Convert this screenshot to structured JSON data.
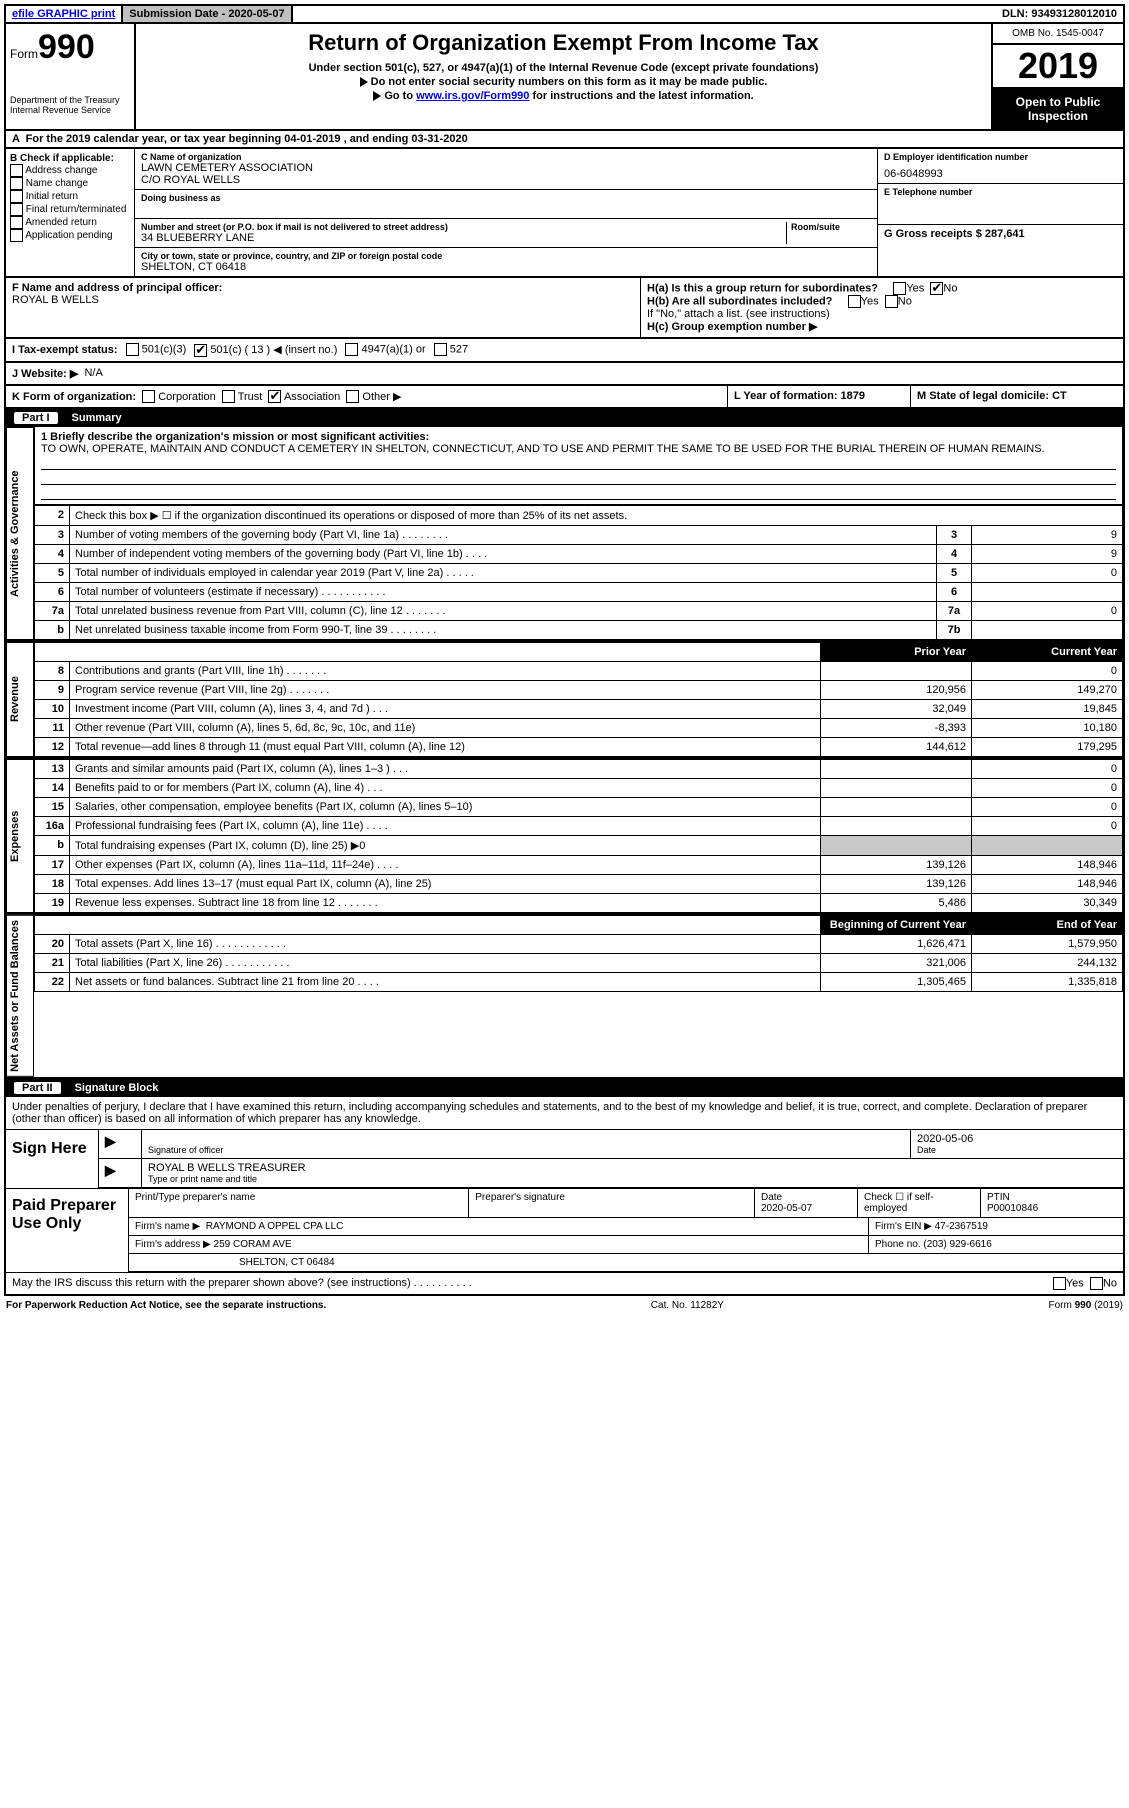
{
  "topbar": {
    "efile": "efile GRAPHIC print",
    "submission_label": "Submission Date - 2020-05-07",
    "dln": "DLN: 93493128012010"
  },
  "header": {
    "form_prefix": "Form",
    "form_number": "990",
    "dept": "Department of the Treasury",
    "irs": "Internal Revenue Service",
    "title": "Return of Organization Exempt From Income Tax",
    "subtitle": "Under section 501(c), 527, or 4947(a)(1) of the Internal Revenue Code (except private foundations)",
    "note1": "Do not enter social security numbers on this form as it may be made public.",
    "note2_prefix": "Go to ",
    "note2_link": "www.irs.gov/Form990",
    "note2_suffix": " for instructions and the latest information.",
    "omb": "OMB No. 1545-0047",
    "year": "2019",
    "inspection": "Open to Public Inspection"
  },
  "line_a": "For the 2019 calendar year, or tax year beginning 04-01-2019    , and ending 03-31-2020",
  "box_b": {
    "heading": "B Check if applicable:",
    "opts": [
      "Address change",
      "Name change",
      "Initial return",
      "Final return/terminated",
      "Amended return",
      "Application pending"
    ]
  },
  "box_c": {
    "name_label": "C Name of organization",
    "name": "LAWN CEMETERY ASSOCIATION",
    "care_of": "C/O ROYAL WELLS",
    "dba_label": "Doing business as",
    "addr_label": "Number and street (or P.O. box if mail is not delivered to street address)",
    "room_label": "Room/suite",
    "addr": "34 BLUEBERRY LANE",
    "city_label": "City or town, state or province, country, and ZIP or foreign postal code",
    "city": "SHELTON, CT  06418"
  },
  "box_d": {
    "ein_label": "D Employer identification number",
    "ein": "06-6048993",
    "phone_label": "E Telephone number",
    "gross_label": "G Gross receipts $ 287,641"
  },
  "box_f": {
    "label": "F  Name and address of principal officer:",
    "name": "ROYAL B WELLS"
  },
  "box_h": {
    "ha": "H(a)  Is this a group return for subordinates?",
    "hb": "H(b)  Are all subordinates included?",
    "hb_note": "If \"No,\" attach a list. (see instructions)",
    "hc": "H(c)  Group exemption number ▶",
    "yes": "Yes",
    "no": "No"
  },
  "status": {
    "i_label": "I  Tax-exempt status:",
    "opt1": "501(c)(3)",
    "opt2_pre": "501(c) ( 13 )",
    "opt2_suf": "(insert no.)",
    "opt3": "4947(a)(1) or",
    "opt4": "527"
  },
  "website": {
    "label": "J  Website: ▶",
    "value": "N/A"
  },
  "line_k": {
    "k": "K Form of organization:",
    "opts": [
      "Corporation",
      "Trust",
      "Association",
      "Other ▶"
    ],
    "l": "L Year of formation: 1879",
    "m": "M State of legal domicile: CT"
  },
  "part1": {
    "label": "Part I",
    "title": "Summary"
  },
  "mission": {
    "label": "1   Briefly describe the organization's mission or most significant activities:",
    "text": "TO OWN, OPERATE, MAINTAIN AND CONDUCT A CEMETERY IN SHELTON, CONNECTICUT, AND TO USE AND PERMIT THE SAME TO BE USED FOR THE BURIAL THEREIN OF HUMAN REMAINS."
  },
  "governance": {
    "line2": "Check this box ▶ ☐  if the organization discontinued its operations or disposed of more than 25% of its net assets.",
    "rows": [
      {
        "n": "3",
        "d": "Number of voting members of the governing body (Part VI, line 1a)  .    .    .    .    .    .    .    .",
        "b": "3",
        "v": "9"
      },
      {
        "n": "4",
        "d": "Number of independent voting members of the governing body (Part VI, line 1b)   .    .    .    .",
        "b": "4",
        "v": "9"
      },
      {
        "n": "5",
        "d": "Total number of individuals employed in calendar year 2019 (Part V, line 2a)  .    .    .    .    .",
        "b": "5",
        "v": "0"
      },
      {
        "n": "6",
        "d": "Total number of volunteers (estimate if necessary)    .    .    .    .    .    .    .    .    .    .    .",
        "b": "6",
        "v": ""
      },
      {
        "n": "7a",
        "d": "Total unrelated business revenue from Part VIII, column (C), line 12   .    .    .    .    .    .    .",
        "b": "7a",
        "v": "0"
      },
      {
        "n": "b",
        "d": "Net unrelated business taxable income from Form 990-T, line 39   .    .    .    .    .    .    .    .",
        "b": "7b",
        "v": ""
      }
    ]
  },
  "col_headers": {
    "prior": "Prior Year",
    "current": "Current Year"
  },
  "revenue": [
    {
      "n": "8",
      "d": "Contributions and grants (Part VIII, line 1h)   .    .    .    .    .    .    .",
      "p": "",
      "c": "0"
    },
    {
      "n": "9",
      "d": "Program service revenue (Part VIII, line 2g)    .    .    .    .    .    .    .",
      "p": "120,956",
      "c": "149,270"
    },
    {
      "n": "10",
      "d": "Investment income (Part VIII, column (A), lines 3, 4, and 7d )   .    .    .",
      "p": "32,049",
      "c": "19,845"
    },
    {
      "n": "11",
      "d": "Other revenue (Part VIII, column (A), lines 5, 6d, 8c, 9c, 10c, and 11e)",
      "p": "-8,393",
      "c": "10,180"
    },
    {
      "n": "12",
      "d": "Total revenue—add lines 8 through 11 (must equal Part VIII, column (A), line 12)",
      "p": "144,612",
      "c": "179,295"
    }
  ],
  "expenses": [
    {
      "n": "13",
      "d": "Grants and similar amounts paid (Part IX, column (A), lines 1–3 )  .    .    .",
      "p": "",
      "c": "0"
    },
    {
      "n": "14",
      "d": "Benefits paid to or for members (Part IX, column (A), line 4)   .    .    .",
      "p": "",
      "c": "0"
    },
    {
      "n": "15",
      "d": "Salaries, other compensation, employee benefits (Part IX, column (A), lines 5–10)",
      "p": "",
      "c": "0"
    },
    {
      "n": "16a",
      "d": "Professional fundraising fees (Part IX, column (A), line 11e)   .    .    .    .",
      "p": "",
      "c": "0"
    },
    {
      "n": "b",
      "d": "Total fundraising expenses (Part IX, column (D), line 25) ▶0",
      "shadeP": true,
      "shadeC": true
    },
    {
      "n": "17",
      "d": "Other expenses (Part IX, column (A), lines 11a–11d, 11f–24e)   .    .    .    .",
      "p": "139,126",
      "c": "148,946"
    },
    {
      "n": "18",
      "d": "Total expenses. Add lines 13–17 (must equal Part IX, column (A), line 25)",
      "p": "139,126",
      "c": "148,946"
    },
    {
      "n": "19",
      "d": "Revenue less expenses. Subtract line 18 from line 12 .    .    .    .    .    .    .",
      "p": "5,486",
      "c": "30,349"
    }
  ],
  "net_headers": {
    "begin": "Beginning of Current Year",
    "end": "End of Year"
  },
  "netassets": [
    {
      "n": "20",
      "d": "Total assets (Part X, line 16)  .    .    .    .    .    .    .    .    .    .    .    .",
      "p": "1,626,471",
      "c": "1,579,950"
    },
    {
      "n": "21",
      "d": "Total liabilities (Part X, line 26)  .    .    .    .    .    .    .    .    .    .    .",
      "p": "321,006",
      "c": "244,132"
    },
    {
      "n": "22",
      "d": "Net assets or fund balances. Subtract line 21 from line 20   .    .    .    .",
      "p": "1,305,465",
      "c": "1,335,818"
    }
  ],
  "part2": {
    "label": "Part II",
    "title": "Signature Block"
  },
  "sig": {
    "declaration": "Under penalties of perjury, I declare that I have examined this return, including accompanying schedules and statements, and to the best of my knowledge and belief, it is true, correct, and complete. Declaration of preparer (other than officer) is based on all information of which preparer has any knowledge.",
    "sign_here": "Sign Here",
    "sig_officer": "Signature of officer",
    "date": "Date",
    "date_val": "2020-05-06",
    "name_title": "ROYAL B WELLS  TREASURER",
    "type_name": "Type or print name and title"
  },
  "preparer": {
    "label": "Paid Preparer Use Only",
    "print_name": "Print/Type preparer's name",
    "prep_sig": "Preparer's signature",
    "date": "Date",
    "date_val": "2020-05-07",
    "check": "Check ☐ if self-employed",
    "ptin_label": "PTIN",
    "ptin": "P00010846",
    "firm_name_label": "Firm's name     ▶",
    "firm_name": "RAYMOND A OPPEL CPA LLC",
    "firm_ein_label": "Firm's EIN ▶",
    "firm_ein": "47-2367519",
    "firm_addr_label": "Firm's address ▶",
    "firm_addr1": "259 CORAM AVE",
    "firm_addr2": "SHELTON, CT  06484",
    "phone_label": "Phone no.",
    "phone": "(203) 929-6616",
    "discuss": "May the IRS discuss this return with the preparer shown above? (see instructions)   .    .    .    .    .    .    .    .    .    ."
  },
  "footer": {
    "left": "For Paperwork Reduction Act Notice, see the separate instructions.",
    "mid": "Cat. No. 11282Y",
    "right": "Form 990 (2019)"
  },
  "side_labels": {
    "gov": "Activities & Governance",
    "rev": "Revenue",
    "exp": "Expenses",
    "net": "Net Assets or Fund Balances"
  }
}
